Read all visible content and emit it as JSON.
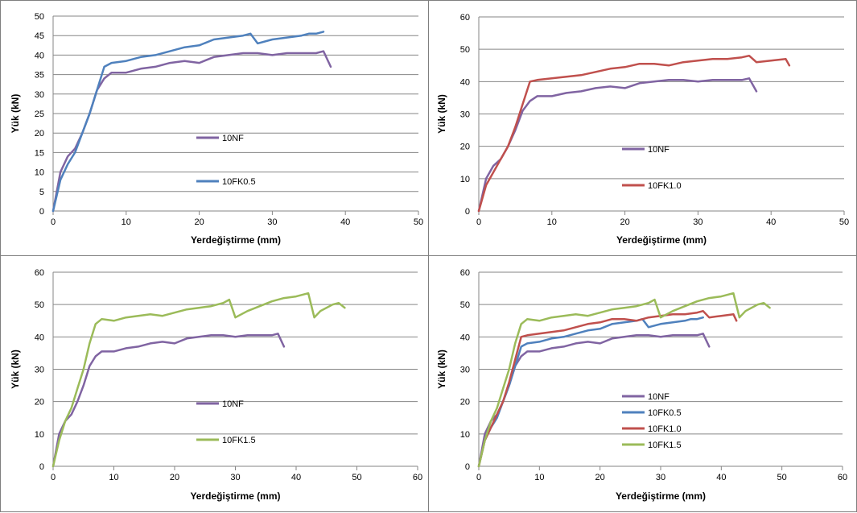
{
  "chart_data": [
    {
      "type": "line",
      "xlabel": "Yerdeğiştirme (mm)",
      "ylabel": "Yük (kN)",
      "xlim": [
        0,
        50
      ],
      "ylim": [
        0,
        50
      ],
      "xticks": [
        "0",
        "10",
        "20",
        "30",
        "40",
        "50"
      ],
      "yticks": [
        "0",
        "5",
        "10",
        "15",
        "20",
        "25",
        "30",
        "35",
        "40",
        "45",
        "50"
      ],
      "grid": "horizontal",
      "legend_position": "center",
      "series": [
        {
          "name": "10NF",
          "color": "#8064a2",
          "x": [
            0,
            1,
            2,
            3,
            4,
            5,
            6,
            7,
            8,
            10,
            12,
            14,
            16,
            18,
            20,
            22,
            24,
            26,
            28,
            30,
            32,
            34,
            36,
            37,
            38
          ],
          "y": [
            0,
            10,
            14,
            16,
            20,
            25,
            31,
            34,
            35.5,
            35.5,
            36.5,
            37,
            38,
            38.5,
            38,
            39.5,
            40,
            40.5,
            40.5,
            40,
            40.5,
            40.5,
            40.5,
            41,
            37
          ]
        },
        {
          "name": "10FK0.5",
          "color": "#4f81bd",
          "x": [
            0,
            1,
            2,
            3,
            4,
            5,
            6,
            7,
            8,
            10,
            12,
            14,
            16,
            18,
            20,
            22,
            24,
            26,
            27,
            28,
            30,
            32,
            34,
            35,
            36,
            37
          ],
          "y": [
            0,
            8,
            12,
            15,
            20,
            25,
            31,
            37,
            38,
            38.5,
            39.5,
            40,
            41,
            42,
            42.5,
            44,
            44.5,
            45,
            45.5,
            43,
            44,
            44.5,
            45,
            45.5,
            45.5,
            46
          ]
        }
      ]
    },
    {
      "type": "line",
      "xlabel": "Yerdeğiştirme (mm)",
      "ylabel": "Yük (kN)",
      "xlim": [
        0,
        50
      ],
      "ylim": [
        0,
        60
      ],
      "xticks": [
        "0",
        "10",
        "20",
        "30",
        "40",
        "50"
      ],
      "yticks": [
        "0",
        "10",
        "20",
        "30",
        "40",
        "50",
        "60"
      ],
      "grid": "horizontal",
      "legend_position": "center",
      "series": [
        {
          "name": "10NF",
          "color": "#8064a2",
          "x": [
            0,
            1,
            2,
            3,
            4,
            5,
            6,
            7,
            8,
            10,
            12,
            14,
            16,
            18,
            20,
            22,
            24,
            26,
            28,
            30,
            32,
            34,
            36,
            37,
            38
          ],
          "y": [
            0,
            10,
            14,
            16,
            20,
            25,
            31,
            34,
            35.5,
            35.5,
            36.5,
            37,
            38,
            38.5,
            38,
            39.5,
            40,
            40.5,
            40.5,
            40,
            40.5,
            40.5,
            40.5,
            41,
            37
          ]
        },
        {
          "name": "10FK1.0",
          "color": "#c0504d",
          "x": [
            0,
            1,
            2,
            3,
            4,
            5,
            6,
            7,
            8,
            10,
            12,
            14,
            16,
            18,
            20,
            22,
            24,
            26,
            28,
            30,
            32,
            34,
            36,
            37,
            38,
            40,
            42,
            42.5
          ],
          "y": [
            0,
            8,
            12,
            16,
            20,
            26,
            33,
            40,
            40.5,
            41,
            41.5,
            42,
            43,
            44,
            44.5,
            45.5,
            45.5,
            45,
            46,
            46.5,
            47,
            47,
            47.5,
            48,
            46,
            46.5,
            47,
            45
          ]
        }
      ]
    },
    {
      "type": "line",
      "xlabel": "Yerdeğiştirme (mm)",
      "ylabel": "Yük (kN)",
      "xlim": [
        0,
        60
      ],
      "ylim": [
        0,
        60
      ],
      "xticks": [
        "0",
        "10",
        "20",
        "30",
        "40",
        "50",
        "60"
      ],
      "yticks": [
        "0",
        "10",
        "20",
        "30",
        "40",
        "50",
        "60"
      ],
      "grid": "horizontal",
      "legend_position": "center",
      "series": [
        {
          "name": "10NF",
          "color": "#8064a2",
          "x": [
            0,
            1,
            2,
            3,
            4,
            5,
            6,
            7,
            8,
            10,
            12,
            14,
            16,
            18,
            20,
            22,
            24,
            26,
            28,
            30,
            32,
            34,
            36,
            37,
            38
          ],
          "y": [
            0,
            10,
            14,
            16,
            20,
            25,
            31,
            34,
            35.5,
            35.5,
            36.5,
            37,
            38,
            38.5,
            38,
            39.5,
            40,
            40.5,
            40.5,
            40,
            40.5,
            40.5,
            40.5,
            41,
            37
          ]
        },
        {
          "name": "10FK1.5",
          "color": "#9bbb59",
          "x": [
            0,
            1,
            2,
            3,
            4,
            5,
            6,
            7,
            8,
            10,
            12,
            14,
            16,
            18,
            20,
            22,
            24,
            26,
            28,
            29,
            30,
            32,
            34,
            36,
            38,
            40,
            42,
            43,
            44,
            46,
            47,
            48
          ],
          "y": [
            0,
            8,
            14,
            18,
            24,
            30,
            38,
            44,
            45.5,
            45,
            46,
            46.5,
            47,
            46.5,
            47.5,
            48.5,
            49,
            49.5,
            50.5,
            51.5,
            46,
            48,
            49.5,
            51,
            52,
            52.5,
            53.5,
            46,
            48,
            50,
            50.5,
            49
          ]
        }
      ]
    },
    {
      "type": "line",
      "xlabel": "Yerdeğiştirme (mm)",
      "ylabel": "Yük (kN)",
      "xlim": [
        0,
        60
      ],
      "ylim": [
        0,
        60
      ],
      "xticks": [
        "0",
        "10",
        "20",
        "30",
        "40",
        "50",
        "60"
      ],
      "yticks": [
        "0",
        "10",
        "20",
        "30",
        "40",
        "50",
        "60"
      ],
      "grid": "horizontal",
      "legend_position": "center",
      "series": [
        {
          "name": "10NF",
          "color": "#8064a2",
          "x": [
            0,
            1,
            2,
            3,
            4,
            5,
            6,
            7,
            8,
            10,
            12,
            14,
            16,
            18,
            20,
            22,
            24,
            26,
            28,
            30,
            32,
            34,
            36,
            37,
            38
          ],
          "y": [
            0,
            10,
            14,
            16,
            20,
            25,
            31,
            34,
            35.5,
            35.5,
            36.5,
            37,
            38,
            38.5,
            38,
            39.5,
            40,
            40.5,
            40.5,
            40,
            40.5,
            40.5,
            40.5,
            41,
            37
          ]
        },
        {
          "name": "10FK0.5",
          "color": "#4f81bd",
          "x": [
            0,
            1,
            2,
            3,
            4,
            5,
            6,
            7,
            8,
            10,
            12,
            14,
            16,
            18,
            20,
            22,
            24,
            26,
            27,
            28,
            30,
            32,
            34,
            35,
            36,
            37
          ],
          "y": [
            0,
            8,
            12,
            15,
            20,
            25,
            31,
            37,
            38,
            38.5,
            39.5,
            40,
            41,
            42,
            42.5,
            44,
            44.5,
            45,
            45.5,
            43,
            44,
            44.5,
            45,
            45.5,
            45.5,
            46
          ]
        },
        {
          "name": "10FK1.0",
          "color": "#c0504d",
          "x": [
            0,
            1,
            2,
            3,
            4,
            5,
            6,
            7,
            8,
            10,
            12,
            14,
            16,
            18,
            20,
            22,
            24,
            26,
            28,
            30,
            32,
            34,
            36,
            37,
            38,
            40,
            42,
            42.5
          ],
          "y": [
            0,
            8,
            12,
            16,
            20,
            26,
            33,
            40,
            40.5,
            41,
            41.5,
            42,
            43,
            44,
            44.5,
            45.5,
            45.5,
            45,
            46,
            46.5,
            47,
            47,
            47.5,
            48,
            46,
            46.5,
            47,
            45
          ]
        },
        {
          "name": "10FK1.5",
          "color": "#9bbb59",
          "x": [
            0,
            1,
            2,
            3,
            4,
            5,
            6,
            7,
            8,
            10,
            12,
            14,
            16,
            18,
            20,
            22,
            24,
            26,
            28,
            29,
            30,
            32,
            34,
            36,
            38,
            40,
            42,
            43,
            44,
            46,
            47,
            48
          ],
          "y": [
            0,
            8,
            14,
            18,
            24,
            30,
            38,
            44,
            45.5,
            45,
            46,
            46.5,
            47,
            46.5,
            47.5,
            48.5,
            49,
            49.5,
            50.5,
            51.5,
            46,
            48,
            49.5,
            51,
            52,
            52.5,
            53.5,
            46,
            48,
            50,
            50.5,
            49
          ]
        }
      ]
    }
  ]
}
